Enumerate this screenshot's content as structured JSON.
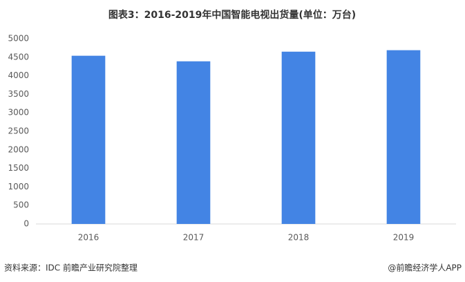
{
  "chart_data": {
    "type": "bar",
    "title": "图表3：2016-2019年中国智能电视出货量(单位：万台)",
    "categories": [
      "2016",
      "2017",
      "2018",
      "2019"
    ],
    "values": [
      4540,
      4390,
      4650,
      4690
    ],
    "color": "#4384e4",
    "ylim": [
      0,
      5000
    ],
    "yticks": [
      0,
      500,
      1000,
      1500,
      2000,
      2500,
      3000,
      3500,
      4000,
      4500,
      5000
    ],
    "grid": false
  },
  "footer": {
    "source": "资料来源：IDC 前瞻产业研究院整理",
    "credit": "@前瞻经济学人APP"
  }
}
